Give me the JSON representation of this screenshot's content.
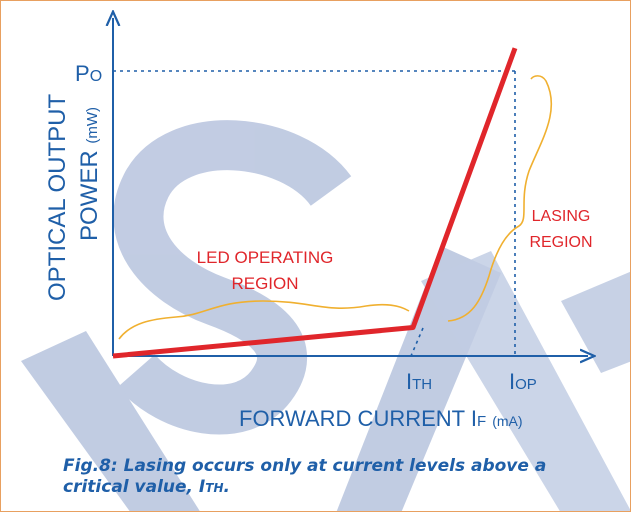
{
  "chart_data": {
    "type": "line",
    "title": "",
    "xlabel": "FORWARD CURRENT I",
    "xlabel_subscript": "F",
    "xlabel_unit": "(mA)",
    "ylabel_line1": "OPTICAL OUTPUT",
    "ylabel_line2": "POWER",
    "ylabel_unit": "(mW)",
    "ticks": {
      "y_main": "P",
      "y_sub": "O",
      "ith_main": "I",
      "ith_sub": "TH",
      "iop_main": "I",
      "iop_sub": "OP"
    },
    "series": [
      {
        "values": [
          {
            "x": 0,
            "y": 0
          },
          {
            "x": 1,
            "y": 0.1
          },
          {
            "x": 1.34,
            "y": 1.08
          }
        ]
      }
    ],
    "x_markers": {
      "threshold": 1,
      "operating": 1.34
    },
    "y_marker": 1,
    "regions": [
      {
        "line1": "LED OPERATING",
        "line2": "REGION"
      },
      {
        "line1": "LASING",
        "line2": "REGION"
      }
    ],
    "colors": {
      "curve": "#e0262b",
      "axis": "#1f5fa8",
      "brace": "#f0b030",
      "watermark": "#8fa3cc"
    }
  },
  "caption": {
    "line1": "Fig.8: Lasing occurs only at current levels above a",
    "line2_prefix": "critical value, I",
    "line2_sub": "TH",
    "line2_suffix": "."
  }
}
